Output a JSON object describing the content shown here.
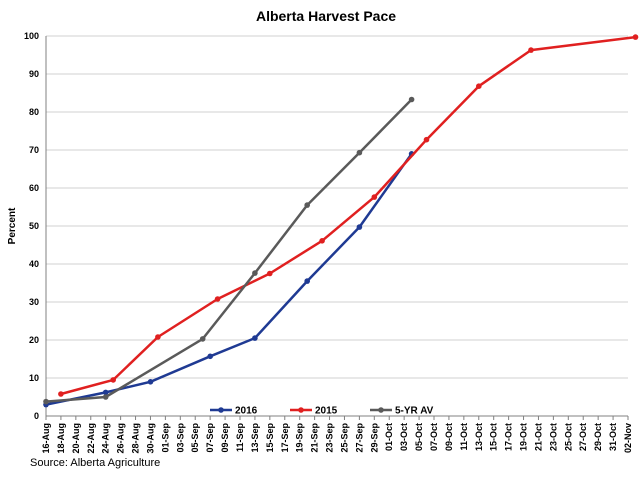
{
  "chart_data": {
    "type": "line",
    "title": "Alberta Harvest Pace",
    "ylabel": "Percent",
    "xlabel": "",
    "ylim": [
      0,
      100
    ],
    "y_ticks": [
      0,
      10,
      20,
      30,
      40,
      50,
      60,
      70,
      80,
      90,
      100
    ],
    "grid": true,
    "legend_position": "bottom-center",
    "categories": [
      "16-Aug",
      "18-Aug",
      "20-Aug",
      "22-Aug",
      "24-Aug",
      "26-Aug",
      "28-Aug",
      "30-Aug",
      "01-Sep",
      "03-Sep",
      "05-Sep",
      "07-Sep",
      "09-Sep",
      "11-Sep",
      "13-Sep",
      "15-Sep",
      "17-Sep",
      "19-Sep",
      "21-Sep",
      "23-Sep",
      "25-Sep",
      "27-Sep",
      "29-Sep",
      "01-Oct",
      "03-Oct",
      "05-Oct",
      "07-Oct",
      "09-Oct",
      "11-Oct",
      "13-Oct",
      "15-Oct",
      "17-Oct",
      "19-Oct",
      "21-Oct",
      "23-Oct",
      "25-Oct",
      "27-Oct",
      "29-Oct",
      "31-Oct",
      "02-Nov"
    ],
    "series": [
      {
        "name": "2016",
        "color": "#1f3a93",
        "points": [
          {
            "x": "16-Aug",
            "y": 3
          },
          {
            "x": "24-Aug",
            "y": 6.2
          },
          {
            "x": "30-Aug",
            "y": 9
          },
          {
            "x": "07-Sep",
            "y": 15.7
          },
          {
            "x": "13-Sep",
            "y": 20.5
          },
          {
            "x": "20-Sep",
            "y": 35.5
          },
          {
            "x": "27-Sep",
            "y": 49.7
          },
          {
            "x": "04-Oct",
            "y": 69
          }
        ]
      },
      {
        "name": "2015",
        "color": "#e02020",
        "points": [
          {
            "x": "18-Aug",
            "y": 5.8
          },
          {
            "x": "25-Aug",
            "y": 9.5
          },
          {
            "x": "31-Aug",
            "y": 20.8
          },
          {
            "x": "08-Sep",
            "y": 30.8
          },
          {
            "x": "15-Sep",
            "y": 37.5
          },
          {
            "x": "22-Sep",
            "y": 46.1
          },
          {
            "x": "29-Sep",
            "y": 57.6
          },
          {
            "x": "06-Oct",
            "y": 72.7
          },
          {
            "x": "13-Oct",
            "y": 86.8
          },
          {
            "x": "20-Oct",
            "y": 96.3
          },
          {
            "x": "03-Nov",
            "y": 99.7
          }
        ]
      },
      {
        "name": "5-YR AV",
        "color": "#5a5a5a",
        "points": [
          {
            "x": "16-Aug",
            "y": 3.8
          },
          {
            "x": "24-Aug",
            "y": 5
          },
          {
            "x": "06-Sep",
            "y": 20.3
          },
          {
            "x": "13-Sep",
            "y": 37.6
          },
          {
            "x": "20-Sep",
            "y": 55.5
          },
          {
            "x": "27-Sep",
            "y": 69.3
          },
          {
            "x": "04-Oct",
            "y": 83.3
          }
        ]
      }
    ]
  },
  "source": "Source: Alberta Agriculture"
}
